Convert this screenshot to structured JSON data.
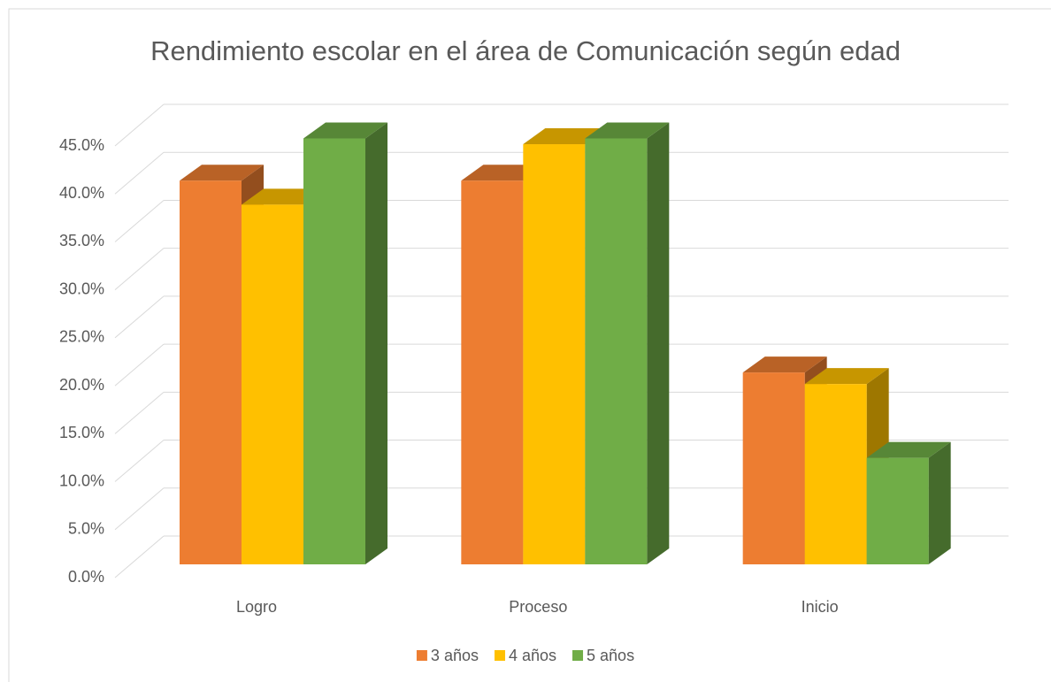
{
  "chart_data": {
    "type": "bar3d",
    "title": "Rendimiento escolar en el área de Comunicación según edad",
    "categories": [
      "Logro",
      "Proceso",
      "Inicio"
    ],
    "series": [
      {
        "name": "3 años",
        "color": "#ed7d31",
        "values": [
          40.0,
          40.0,
          20.0
        ]
      },
      {
        "name": "4 años",
        "color": "#ffc000",
        "values": [
          37.5,
          43.8,
          18.8
        ]
      },
      {
        "name": "5 años",
        "color": "#70ad47",
        "values": [
          44.4,
          44.4,
          11.1
        ]
      }
    ],
    "ylim": [
      0,
      45
    ],
    "yticks": [
      {
        "value": 0,
        "label": "0.0%"
      },
      {
        "value": 5,
        "label": "5.0%"
      },
      {
        "value": 10,
        "label": "10.0%"
      },
      {
        "value": 15,
        "label": "15.0%"
      },
      {
        "value": 20,
        "label": "20.0%"
      },
      {
        "value": 25,
        "label": "25.0%"
      },
      {
        "value": 30,
        "label": "30.0%"
      },
      {
        "value": 35,
        "label": "35.0%"
      },
      {
        "value": 40,
        "label": "40.0%"
      },
      {
        "value": 45,
        "label": "45.0%"
      }
    ],
    "grid": true,
    "legend": "bottom"
  }
}
